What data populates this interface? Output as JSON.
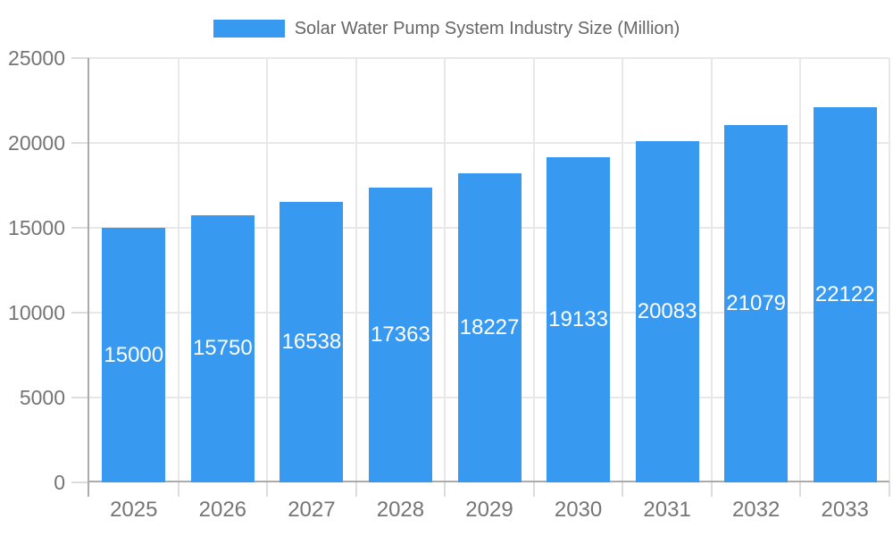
{
  "chart_data": {
    "type": "bar",
    "title": "Solar Water Pump System Industry Size (Million)",
    "categories": [
      "2025",
      "2026",
      "2027",
      "2028",
      "2029",
      "2030",
      "2031",
      "2032",
      "2033"
    ],
    "values": [
      15000,
      15750,
      16538,
      17363,
      18227,
      19133,
      20083,
      21079,
      22122
    ],
    "series": [
      {
        "name": "Solar Water Pump System Industry Size (Million)",
        "values": [
          15000,
          15750,
          16538,
          17363,
          18227,
          19133,
          20083,
          21079,
          22122
        ]
      }
    ],
    "xlabel": "",
    "ylabel": "",
    "ylim": [
      0,
      25000
    ],
    "yticks": [
      0,
      5000,
      10000,
      15000,
      20000,
      25000
    ],
    "grid": true,
    "legend_position": "top-center",
    "value_labels": "inside-center"
  },
  "colors": {
    "bar": "#3899F0",
    "grid": "#e8e8e8",
    "tick": "#dcdcdc",
    "axis": "#ababab",
    "axis_text": "#757575",
    "legend_text": "#666666",
    "value_label": "#ffffff",
    "background": "#ffffff"
  }
}
